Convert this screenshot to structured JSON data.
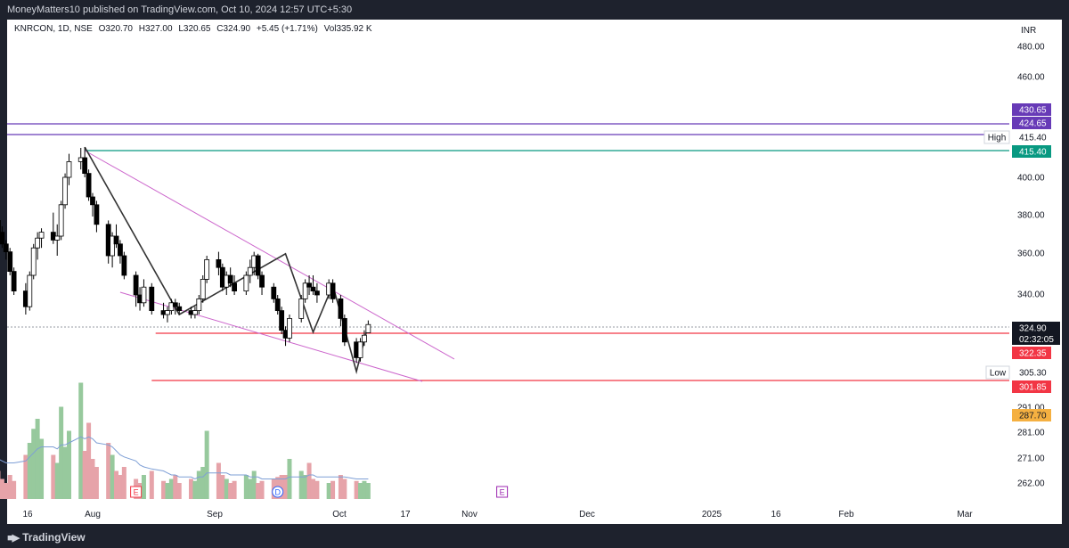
{
  "header": {
    "publisher": "MoneyMatters10 published on TradingView.com, Oct 10, 2024 12:57 UTC+5:30"
  },
  "legend": {
    "symbol": "KNRCON, 1D, NSE",
    "open": "O320.70",
    "high": "H327.00",
    "low": "L320.65",
    "close": "C324.90",
    "change": "+5.45 (+1.71%)",
    "volume": "Vol335.92 K"
  },
  "footer": {
    "logo_text": "TradingView"
  },
  "colors": {
    "up": "#ffffff",
    "down": "#000000",
    "wick": "#000000",
    "vol_up": "#97c99d",
    "vol_down": "#e6a3a9",
    "vol_ma": "#7e9fd6",
    "wedge": "#cc66cc",
    "zigzag": "#333333",
    "purple": "#673ab7",
    "teal": "#089981",
    "red": "#f23645",
    "orange": "#f5b041"
  },
  "chart_data": {
    "type": "candlestick",
    "currency": "INR",
    "y_ticks": [
      "480.00",
      "460.00",
      "400.00",
      "380.00",
      "360.00",
      "340.00",
      "291.00",
      "281.00",
      "271.00",
      "262.00"
    ],
    "x_ticks": [
      "16",
      "Aug",
      "Sep",
      "Oct",
      "17",
      "Nov",
      "Dec",
      "2025",
      "16",
      "Feb",
      "Mar"
    ],
    "price_labels": [
      {
        "value": "430.65",
        "role": "level",
        "color": "#673ab7"
      },
      {
        "value": "424.65",
        "role": "level",
        "color": "#673ab7"
      },
      {
        "value": "415.40",
        "role": "high",
        "tag": "High"
      },
      {
        "value": "415.40",
        "role": "level",
        "color": "#089981"
      },
      {
        "value": "324.90",
        "role": "last",
        "countdown": "02:32:05"
      },
      {
        "value": "322.35",
        "role": "level",
        "color": "#f23645"
      },
      {
        "value": "305.30",
        "role": "low",
        "tag": "Low"
      },
      {
        "value": "301.85",
        "role": "level",
        "color": "#f23645"
      },
      {
        "value": "287.70",
        "role": "level",
        "color": "#f5b041"
      }
    ],
    "horizontal_levels": [
      {
        "price": 430.65,
        "color": "#673ab7",
        "from": "start"
      },
      {
        "price": 424.65,
        "color": "#673ab7",
        "from": "start"
      },
      {
        "price": 415.4,
        "color": "#089981",
        "from": "2024-07-30"
      },
      {
        "price": 322.35,
        "color": "#f23645",
        "from": "2024-08-17"
      },
      {
        "price": 301.85,
        "color": "#f23645",
        "from": "2024-08-16"
      }
    ],
    "wedge": {
      "upper": [
        [
          "2024-07-30",
          415.4
        ],
        [
          "2024-10-24",
          320.0
        ]
      ],
      "lower": [
        [
          "2024-08-08",
          339.0
        ],
        [
          "2024-10-21",
          301.5
        ]
      ]
    },
    "zigzag": [
      [
        "2024-07-30",
        415.4
      ],
      [
        "2024-08-23",
        330.0
      ],
      [
        "2024-09-19",
        361.0
      ],
      [
        "2024-09-26",
        321.0
      ],
      [
        "2024-10-01",
        345.0
      ],
      [
        "2024-10-07",
        305.3
      ],
      [
        "2024-10-10",
        324.9
      ]
    ],
    "candles": [
      [
        "2024-07-08",
        378,
        383,
        370,
        372
      ],
      [
        "2024-07-09",
        372,
        375,
        364,
        366
      ],
      [
        "2024-07-10",
        366,
        368,
        358,
        362
      ],
      [
        "2024-07-11",
        362,
        364,
        350,
        352
      ],
      [
        "2024-07-12",
        352,
        354,
        340,
        342
      ],
      [
        "2024-07-15",
        342,
        346,
        330,
        334
      ],
      [
        "2024-07-16",
        334,
        352,
        332,
        350
      ],
      [
        "2024-07-17",
        350,
        366,
        348,
        364
      ],
      [
        "2024-07-18",
        364,
        372,
        358,
        369
      ],
      [
        "2024-07-19",
        369,
        374,
        364,
        372
      ],
      [
        "2024-07-22",
        372,
        382,
        366,
        368
      ],
      [
        "2024-07-23",
        368,
        376,
        360,
        370
      ],
      [
        "2024-07-24",
        370,
        388,
        368,
        386
      ],
      [
        "2024-07-25",
        386,
        402,
        384,
        400
      ],
      [
        "2024-07-26",
        400,
        412,
        396,
        408
      ],
      [
        "2024-07-29",
        408,
        415,
        404,
        410
      ],
      [
        "2024-07-30",
        410,
        415.4,
        400,
        402
      ],
      [
        "2024-07-31",
        402,
        404,
        388,
        390
      ],
      [
        "2024-08-01",
        390,
        392,
        380,
        386
      ],
      [
        "2024-08-02",
        386,
        388,
        372,
        376
      ],
      [
        "2024-08-05",
        376,
        378,
        356,
        360
      ],
      [
        "2024-08-06",
        360,
        372,
        354,
        370
      ],
      [
        "2024-08-07",
        370,
        376,
        364,
        366
      ],
      [
        "2024-08-08",
        366,
        368,
        356,
        360
      ],
      [
        "2024-08-09",
        360,
        362,
        348,
        350
      ],
      [
        "2024-08-12",
        350,
        352,
        334,
        340
      ],
      [
        "2024-08-13",
        340,
        344,
        332,
        336
      ],
      [
        "2024-08-14",
        336,
        348,
        334,
        344
      ],
      [
        "2024-08-16",
        344,
        346,
        330,
        332
      ],
      [
        "2024-08-19",
        332,
        336,
        328,
        330
      ],
      [
        "2024-08-20",
        330,
        334,
        326,
        332
      ],
      [
        "2024-08-21",
        332,
        338,
        330,
        336
      ],
      [
        "2024-08-22",
        336,
        338,
        330,
        334
      ],
      [
        "2024-08-23",
        334,
        336,
        330,
        332
      ],
      [
        "2024-08-26",
        332,
        334,
        328,
        330
      ],
      [
        "2024-08-27",
        330,
        334,
        328,
        332
      ],
      [
        "2024-08-28",
        332,
        340,
        330,
        338
      ],
      [
        "2024-08-29",
        338,
        350,
        336,
        348
      ],
      [
        "2024-08-30",
        348,
        360,
        346,
        358
      ],
      [
        "2024-09-02",
        358,
        362,
        350,
        354
      ],
      [
        "2024-09-03",
        354,
        356,
        342,
        344
      ],
      [
        "2024-09-04",
        344,
        352,
        340,
        350
      ],
      [
        "2024-09-05",
        350,
        354,
        344,
        346
      ],
      [
        "2024-09-06",
        346,
        350,
        340,
        342
      ],
      [
        "2024-09-09",
        342,
        352,
        340,
        350
      ],
      [
        "2024-09-10",
        350,
        358,
        346,
        354
      ],
      [
        "2024-09-11",
        354,
        362,
        350,
        360
      ],
      [
        "2024-09-12",
        360,
        361,
        348,
        350
      ],
      [
        "2024-09-13",
        350,
        352,
        340,
        344
      ],
      [
        "2024-09-16",
        344,
        346,
        336,
        338
      ],
      [
        "2024-09-17",
        338,
        340,
        330,
        332
      ],
      [
        "2024-09-18",
        332,
        334,
        320,
        322
      ],
      [
        "2024-09-19",
        322,
        324,
        314,
        318
      ],
      [
        "2024-09-20",
        318,
        330,
        316,
        328
      ],
      [
        "2024-09-23",
        328,
        340,
        326,
        338
      ],
      [
        "2024-09-24",
        338,
        348,
        336,
        346
      ],
      [
        "2024-09-25",
        346,
        350,
        340,
        344
      ],
      [
        "2024-09-26",
        344,
        350,
        340,
        342
      ],
      [
        "2024-09-27",
        342,
        346,
        336,
        340
      ],
      [
        "2024-09-30",
        340,
        348,
        338,
        346
      ],
      [
        "2024-10-01",
        346,
        348,
        336,
        338
      ],
      [
        "2024-10-03",
        338,
        340,
        324,
        328
      ],
      [
        "2024-10-04",
        328,
        330,
        314,
        316
      ],
      [
        "2024-10-07",
        316,
        318,
        305.3,
        308
      ],
      [
        "2024-10-08",
        308,
        318,
        306,
        316
      ],
      [
        "2024-10-09",
        316,
        322,
        314,
        319.45
      ],
      [
        "2024-10-10",
        320.7,
        327,
        320.65,
        324.9
      ]
    ],
    "volume": [
      14,
      10,
      8,
      12,
      9,
      22,
      28,
      35,
      40,
      30,
      22,
      18,
      46,
      26,
      34,
      58,
      24,
      38,
      20,
      16,
      28,
      22,
      14,
      12,
      16,
      10,
      8,
      12,
      14,
      9,
      8,
      10,
      12,
      8,
      10,
      9,
      14,
      16,
      34,
      18,
      12,
      10,
      8,
      9,
      12,
      10,
      14,
      8,
      9,
      10,
      11,
      12,
      12,
      20,
      14,
      12,
      18,
      10,
      9,
      8,
      9,
      12,
      10,
      9,
      8,
      9,
      8
    ],
    "vol_ma": [
      20,
      19,
      18,
      18,
      18,
      19,
      21,
      23,
      25,
      26,
      26,
      25,
      27,
      27,
      28,
      31,
      30,
      31,
      30,
      28,
      27,
      26,
      24,
      22,
      21,
      19,
      17,
      16,
      15,
      14,
      13,
      12,
      12,
      11,
      11,
      10,
      11,
      11,
      13,
      13,
      13,
      13,
      12,
      12,
      12,
      11,
      11,
      11,
      10,
      10,
      10,
      10,
      10,
      11,
      11,
      11,
      12,
      12,
      11,
      11,
      11,
      11,
      11,
      10,
      10,
      10,
      10
    ],
    "vol_max": 60,
    "markers": [
      {
        "date": "2024-08-12",
        "label": "E",
        "color": "#f23645"
      },
      {
        "date": "2024-09-17",
        "label": "D",
        "color": "#2962ff"
      },
      {
        "date": "2024-11-13",
        "label": "E",
        "color": "#9c27b0"
      }
    ]
  }
}
